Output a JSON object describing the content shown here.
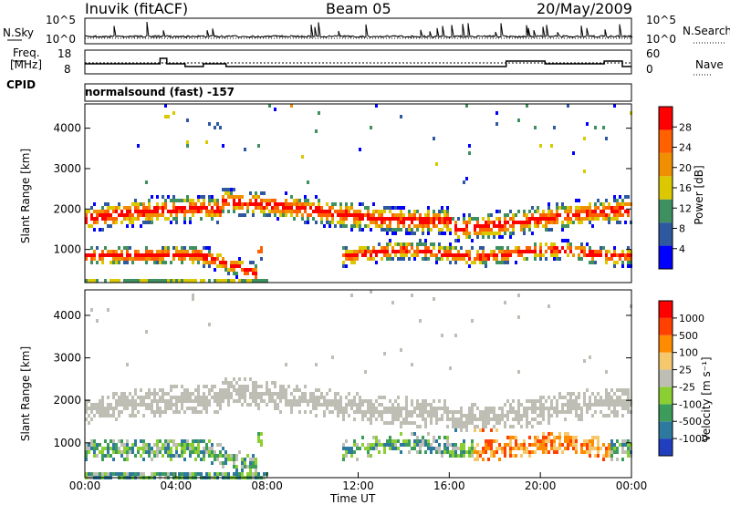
{
  "header": {
    "station": "Inuvik (fitACF)",
    "beam": "Beam 05",
    "date": "20/May/2009"
  },
  "noise_panel": {
    "left_label": "N.Sky",
    "left_ticks": [
      "10^5",
      "10^0"
    ],
    "right_ticks": [
      "10^5",
      "10^0"
    ],
    "right_label": "N.Search"
  },
  "freq_panel": {
    "left_label_1": "Freq.",
    "left_label_2": "[MHz]",
    "left_ticks": [
      "18",
      "8"
    ],
    "right_ticks": [
      "60",
      "0"
    ],
    "right_label": "Nave"
  },
  "cpid": {
    "label": "CPID",
    "value": "normalsound (fast) -157"
  },
  "chart_data": [
    {
      "type": "heatmap",
      "name": "power",
      "ylabel": "Slant Range [km]",
      "yticks": [
        "4000",
        "3000",
        "2000",
        "1000"
      ],
      "ylim": [
        180,
        4600
      ],
      "colorbar_label": "Power [dB]",
      "colorbar_ticks": [
        "28",
        "24",
        "20",
        "16",
        "12",
        "8",
        "4"
      ],
      "colors": [
        "#0000ff",
        "#2e58a0",
        "#3e9060",
        "#dcc800",
        "#f09000",
        "#ff6000",
        "#ff0000"
      ]
    },
    {
      "type": "heatmap",
      "name": "velocity",
      "ylabel": "Slant Range [km]",
      "yticks": [
        "4000",
        "3000",
        "2000",
        "1000"
      ],
      "ylim": [
        180,
        4600
      ],
      "colorbar_label": "Velocity [m s⁻¹]",
      "colorbar_ticks": [
        "1000",
        "500",
        "100",
        "25",
        "-25",
        "-100",
        "-500",
        "-1000"
      ],
      "colors": [
        "#1f3fbf",
        "#2e7a9e",
        "#3c9d5a",
        "#8ccf32",
        "#bebeb4",
        "#f5c86e",
        "#ff8c00",
        "#ff4000",
        "#ff0000"
      ],
      "xticks": [
        "00:00",
        "04:00",
        "08:00",
        "12:00",
        "16:00",
        "20:00",
        "00:00"
      ],
      "xlabel": "Time UT"
    }
  ]
}
